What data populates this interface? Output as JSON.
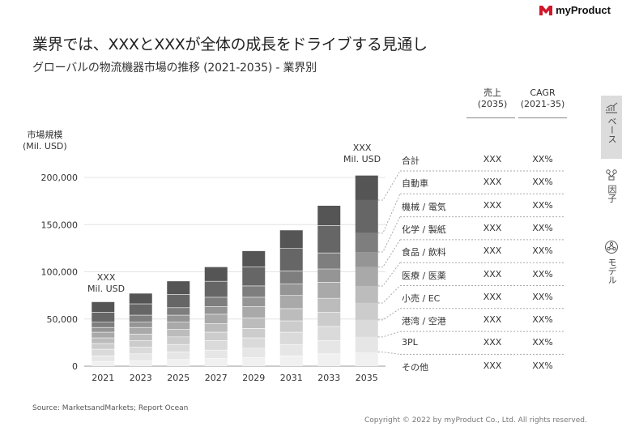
{
  "header": {
    "title": "業界では、XXXとXXXが全体の成長をドライブする見通し",
    "subtitle": "グローバルの物流機器市場の推移 (2021-2035) - 業界別"
  },
  "brand": {
    "logo_text": "myProduct",
    "accent": "#d0182a"
  },
  "chart_data": {
    "type": "bar",
    "stacked": true,
    "categories": [
      "2021",
      "2023",
      "2025",
      "2027",
      "2029",
      "2031",
      "2033",
      "2035"
    ],
    "totals": [
      68000,
      77000,
      90000,
      105000,
      122000,
      144000,
      170000,
      202000
    ],
    "series": [
      {
        "name": "その他",
        "color": "#f0f0f0",
        "values": [
          5000,
          6000,
          7000,
          8000,
          9000,
          11000,
          13000,
          15000
        ]
      },
      {
        "name": "3PL",
        "color": "#e6e6e6",
        "values": [
          6000,
          7000,
          8000,
          9000,
          10000,
          12000,
          14000,
          16000
        ]
      },
      {
        "name": "港湾 / 空港",
        "color": "#dadada",
        "values": [
          7000,
          7000,
          8000,
          10000,
          11000,
          13000,
          15000,
          18000
        ]
      },
      {
        "name": "小売 / EC",
        "color": "#cccccc",
        "values": [
          6000,
          7000,
          8000,
          9000,
          10000,
          12000,
          15000,
          18000
        ]
      },
      {
        "name": "医療 / 医薬",
        "color": "#bcbcbc",
        "values": [
          6000,
          7000,
          8000,
          9000,
          11000,
          13000,
          15000,
          18000
        ]
      },
      {
        "name": "食品 / 飲料",
        "color": "#a9a9a9",
        "values": [
          6000,
          7000,
          8000,
          10000,
          12000,
          14000,
          17000,
          20000
        ]
      },
      {
        "name": "化学 / 製紙",
        "color": "#959595",
        "values": [
          5000,
          6000,
          7000,
          8000,
          10000,
          12000,
          14000,
          16000
        ]
      },
      {
        "name": "機械 / 電気",
        "color": "#7e7e7e",
        "values": [
          6000,
          7000,
          8000,
          10000,
          12000,
          14000,
          17000,
          20000
        ]
      },
      {
        "name": "自動車",
        "color": "#666666",
        "values": [
          10000,
          12000,
          14000,
          17000,
          20000,
          24000,
          29000,
          35000
        ]
      },
      {
        "name": "",
        "color": "#555555",
        "values": [
          11000,
          11000,
          14000,
          15000,
          17000,
          19000,
          21000,
          26000
        ]
      }
    ],
    "ylim": [
      0,
      200000
    ],
    "yticks": [
      "0",
      "50,000",
      "100,000",
      "150,000",
      "200,000"
    ],
    "ytick_values": [
      0,
      50000,
      100000,
      150000,
      200000
    ],
    "ylabel": "市場規模\n(Mil. USD)",
    "annotations": {
      "first": "XXX\nMil. USD",
      "last": "XXX\nMil. USD"
    }
  },
  "table": {
    "header_sales": "売上\n(2035)",
    "header_cagr": "CAGR\n(2021-35)",
    "rows": [
      {
        "name": "合計",
        "sales": "XXX",
        "cagr": "XX%"
      },
      {
        "name": "自動車",
        "sales": "XXX",
        "cagr": "XX%"
      },
      {
        "name": "機械 / 電気",
        "sales": "XXX",
        "cagr": "XX%"
      },
      {
        "name": "化学 / 製紙",
        "sales": "XXX",
        "cagr": "XX%"
      },
      {
        "name": "食品 / 飲料",
        "sales": "XXX",
        "cagr": "XX%"
      },
      {
        "name": "医療 / 医薬",
        "sales": "XXX",
        "cagr": "XX%"
      },
      {
        "name": "小売 / EC",
        "sales": "XXX",
        "cagr": "XX%"
      },
      {
        "name": "港湾 / 空港",
        "sales": "XXX",
        "cagr": "XX%"
      },
      {
        "name": "3PL",
        "sales": "XXX",
        "cagr": "XX%"
      },
      {
        "name": "その他",
        "sales": "XXX",
        "cagr": "XX%"
      }
    ]
  },
  "sidebar": {
    "tabs": [
      {
        "label": "ベース",
        "icon": "growth-chart-icon",
        "active": true
      },
      {
        "label": "因子",
        "icon": "factor-diagram-icon",
        "active": false
      },
      {
        "label": "モデル",
        "icon": "model-network-icon",
        "active": false
      }
    ]
  },
  "footer": {
    "source": "Source: MarketsandMarkets; Report Ocean",
    "copyright": "Copyright © 2022 by myProduct Co., Ltd.  All rights reserved."
  }
}
